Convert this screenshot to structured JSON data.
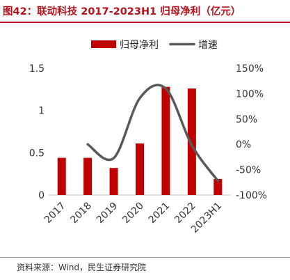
{
  "header": {
    "title": "图42：联动科技 2017-2023H1 归母净利（亿元）"
  },
  "footer": {
    "source": "资料来源：Wind，民生证券研究院"
  },
  "chart_data": {
    "type": "bar",
    "categories": [
      "2017",
      "2018",
      "2019",
      "2020",
      "2021",
      "2022",
      "2023H1"
    ],
    "series": [
      {
        "name": "归母净利",
        "type": "bar",
        "axis": "left",
        "color": "#c00000",
        "values": [
          0.44,
          0.44,
          0.32,
          0.61,
          1.28,
          1.26,
          0.19
        ]
      },
      {
        "name": "增速",
        "type": "line",
        "axis": "right",
        "color": "#595959",
        "values": [
          null,
          0.0,
          -0.27,
          0.91,
          1.1,
          -0.02,
          -0.72
        ]
      }
    ],
    "y_left": {
      "range": [
        0,
        1.5
      ],
      "ticks": [
        0,
        0.5,
        1,
        1.5
      ],
      "tick_labels": [
        "0",
        "0.5",
        "1",
        "1.5"
      ]
    },
    "y_right": {
      "range": [
        -1.0,
        1.5
      ],
      "ticks": [
        -1.0,
        -0.5,
        0,
        0.5,
        1.0,
        1.5
      ],
      "tick_labels": [
        "-100%",
        "-50%",
        "0%",
        "50%",
        "100%",
        "150%"
      ]
    },
    "legend_position": "top-center",
    "grid": false
  }
}
